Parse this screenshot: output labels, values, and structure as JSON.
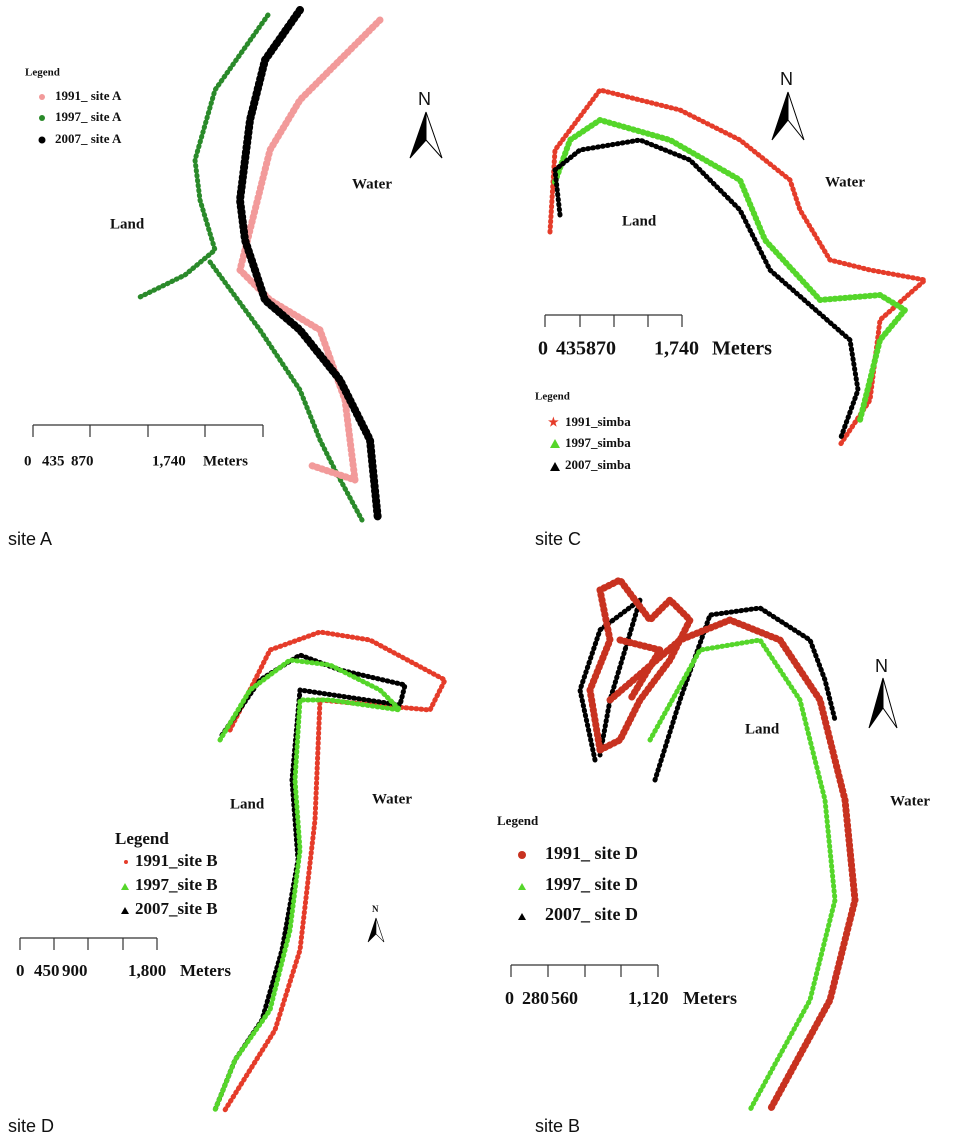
{
  "panels": [
    {
      "caption": "site A",
      "legend": {
        "title": "Legend",
        "entries": [
          "1991_ site A",
          "1997_ site A",
          "2007_ site A"
        ]
      },
      "land": "Land",
      "water": "Water",
      "north": "N",
      "scale": {
        "ticks": [
          "0",
          "435",
          "870",
          "1,740"
        ],
        "unit": "Meters"
      }
    },
    {
      "caption": "site C",
      "legend": {
        "title": "Legend",
        "entries": [
          "1991_simba",
          "1997_simba",
          "2007_simba"
        ]
      },
      "land": "Land",
      "water": "Water",
      "north": "N",
      "scale": {
        "ticks": [
          "0",
          "435",
          "870",
          "1,740"
        ],
        "unit": "Meters"
      }
    },
    {
      "caption": "site D",
      "legend": {
        "title": "Legend",
        "entries": [
          "1991_site B",
          "1997_site B",
          "2007_site B"
        ]
      },
      "land": "Land",
      "water": "Water",
      "north": "N",
      "scale": {
        "ticks": [
          "0",
          "450",
          "900",
          "1,800"
        ],
        "unit": "Meters"
      }
    },
    {
      "caption": "site B",
      "legend": {
        "title": "Legend",
        "entries": [
          "1991_ site D",
          "1997_ site D",
          "2007_ site D"
        ]
      },
      "land": "Land",
      "water": "Water",
      "north": "N",
      "scale": {
        "ticks": [
          "0",
          "280",
          "560",
          "1,120"
        ],
        "unit": "Meters"
      }
    }
  ]
}
